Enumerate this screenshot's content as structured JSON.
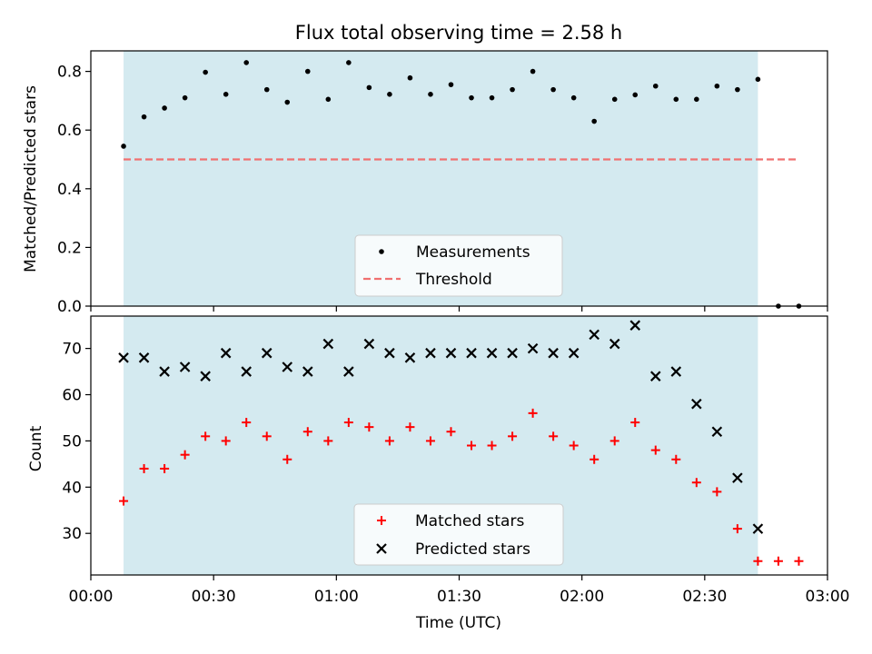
{
  "title": "Flux total observing time = 2.58 h",
  "xlabel": "Time (UTC)",
  "xticks": [
    "00:00",
    "00:30",
    "01:00",
    "01:30",
    "02:00",
    "02:30",
    "03:00"
  ],
  "colors": {
    "shade": "#d4eaf0",
    "measurements": "#000000",
    "threshold": "#f07070",
    "matched": "#ff0000",
    "predicted": "#000000"
  },
  "chart_data": [
    {
      "type": "scatter",
      "ylabel": "Matched/Predicted stars",
      "xlim_minutes": [
        0,
        180
      ],
      "ylim": [
        0,
        0.87
      ],
      "yticks": [
        "0.0",
        "0.2",
        "0.4",
        "0.6",
        "0.8"
      ],
      "shaded_interval_utc": [
        "00:08",
        "02:43"
      ],
      "legend": {
        "position": "lower center",
        "entries": [
          "Measurements",
          "Threshold"
        ]
      },
      "threshold": {
        "name": "Threshold",
        "y": 0.5,
        "x_utc": [
          "00:08",
          "02:53"
        ]
      },
      "series": [
        {
          "name": "Measurements",
          "x_utc": [
            "00:08",
            "00:13",
            "00:18",
            "00:23",
            "00:28",
            "00:33",
            "00:38",
            "00:43",
            "00:48",
            "00:53",
            "00:58",
            "01:03",
            "01:08",
            "01:13",
            "01:18",
            "01:23",
            "01:28",
            "01:33",
            "01:38",
            "01:43",
            "01:48",
            "01:53",
            "01:58",
            "02:03",
            "02:08",
            "02:13",
            "02:18",
            "02:23",
            "02:28",
            "02:33",
            "02:38",
            "02:43",
            "02:48",
            "02:53"
          ],
          "values": [
            0.545,
            0.645,
            0.675,
            0.71,
            0.797,
            0.722,
            0.83,
            0.738,
            0.695,
            0.8,
            0.705,
            0.83,
            0.745,
            0.722,
            0.778,
            0.722,
            0.755,
            0.71,
            0.71,
            0.738,
            0.8,
            0.738,
            0.71,
            0.63,
            0.705,
            0.72,
            0.75,
            0.705,
            0.705,
            0.75,
            0.738,
            0.773,
            0.0,
            0.0
          ]
        }
      ]
    },
    {
      "type": "scatter",
      "ylabel": "Count",
      "xlim_minutes": [
        0,
        180
      ],
      "ylim": [
        21,
        77
      ],
      "yticks": [
        "30",
        "40",
        "50",
        "60",
        "70"
      ],
      "shaded_interval_utc": [
        "00:08",
        "02:43"
      ],
      "legend": {
        "position": "lower center",
        "entries": [
          "Matched stars",
          "Predicted stars"
        ]
      },
      "series": [
        {
          "name": "Matched stars",
          "x_utc": [
            "00:08",
            "00:13",
            "00:18",
            "00:23",
            "00:28",
            "00:33",
            "00:38",
            "00:43",
            "00:48",
            "00:53",
            "00:58",
            "01:03",
            "01:08",
            "01:13",
            "01:18",
            "01:23",
            "01:28",
            "01:33",
            "01:38",
            "01:43",
            "01:48",
            "01:53",
            "01:58",
            "02:03",
            "02:08",
            "02:13",
            "02:18",
            "02:23",
            "02:28",
            "02:33",
            "02:38",
            "02:43",
            "02:48",
            "02:53"
          ],
          "values": [
            37,
            44,
            44,
            47,
            51,
            50,
            54,
            51,
            46,
            52,
            50,
            54,
            53,
            50,
            53,
            50,
            52,
            49,
            49,
            51,
            56,
            51,
            49,
            46,
            50,
            54,
            48,
            46,
            41,
            39,
            31,
            24,
            24,
            24
          ]
        },
        {
          "name": "Predicted stars",
          "x_utc": [
            "00:08",
            "00:13",
            "00:18",
            "00:23",
            "00:28",
            "00:33",
            "00:38",
            "00:43",
            "00:48",
            "00:53",
            "00:58",
            "01:03",
            "01:08",
            "01:13",
            "01:18",
            "01:23",
            "01:28",
            "01:33",
            "01:38",
            "01:43",
            "01:48",
            "01:53",
            "01:58",
            "02:03",
            "02:08",
            "02:13",
            "02:18",
            "02:23",
            "02:28",
            "02:33",
            "02:38",
            "02:43"
          ],
          "values": [
            68,
            68,
            65,
            66,
            64,
            69,
            65,
            69,
            66,
            65,
            71,
            65,
            71,
            69,
            68,
            69,
            69,
            69,
            69,
            69,
            70,
            69,
            69,
            73,
            71,
            75,
            64,
            65,
            58,
            52,
            42,
            31
          ]
        }
      ]
    }
  ]
}
